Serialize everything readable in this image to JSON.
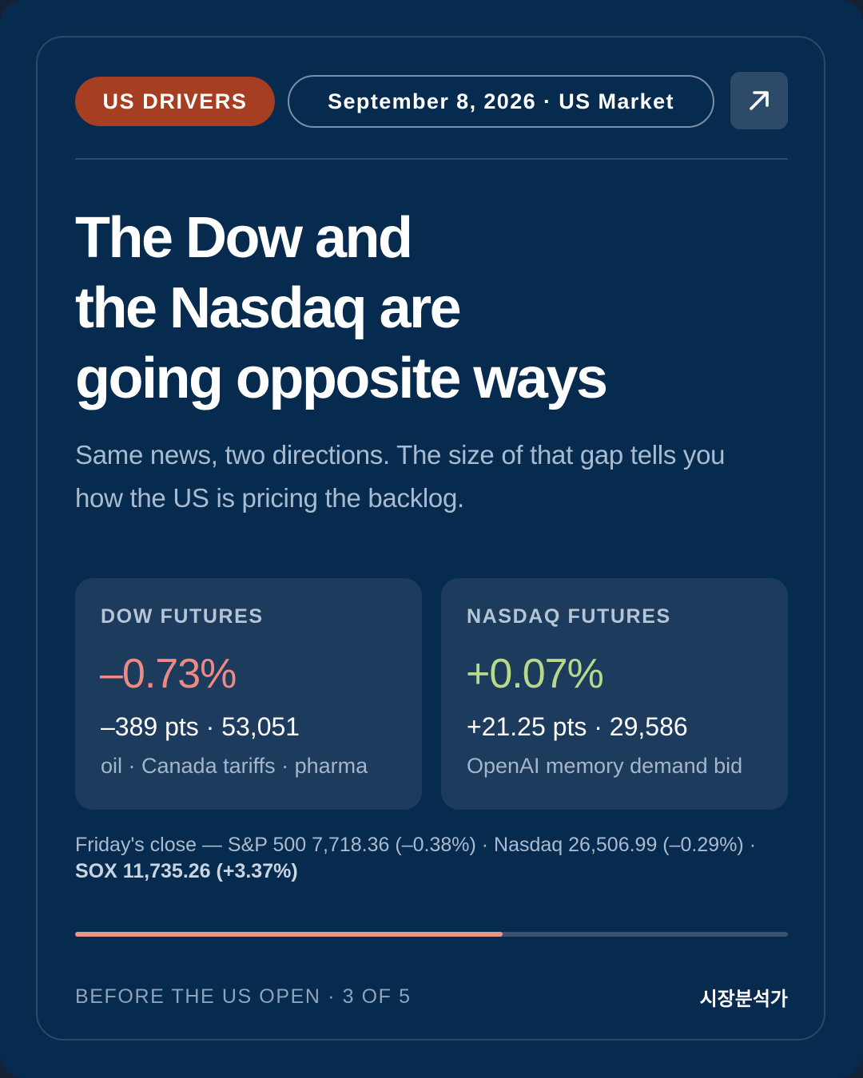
{
  "header": {
    "category_label": "US DRIVERS",
    "date_market_label": "September 8, 2026 · US Market",
    "open_icon": "arrow-up-right-icon"
  },
  "headline": {
    "lines": [
      "The Dow and",
      "the Nasdaq are",
      "going opposite ways"
    ]
  },
  "subtitle": "Same news, two directions. The size of that gap tells you how the US is pricing the backlog.",
  "futures": {
    "dow": {
      "label": "DOW FUTURES",
      "change_pct": "–0.73%",
      "points_level": "–389 pts · 53,051",
      "drivers": "oil · Canada tariffs · pharma"
    },
    "nasdaq": {
      "label": "NASDAQ FUTURES",
      "change_pct": "+0.07%",
      "points_level": "+21.25 pts · 29,586",
      "drivers": "OpenAI memory demand bid"
    }
  },
  "friday_close": {
    "text": "Friday's close — S&P 500 7,718.36 (–0.38%) · Nasdaq 26,506.99 (–0.29%) · ",
    "highlight": "SOX 11,735.26 (+3.37%)"
  },
  "progress": {
    "current": 3,
    "total": 5,
    "fill_fraction": 0.6
  },
  "footer": {
    "series_label": "BEFORE THE US OPEN · 3 OF 5",
    "brand": "시장분석가"
  },
  "colors": {
    "background": "#072a4f",
    "category_pill": "#a63f22",
    "negative": "#ee8a84",
    "positive": "#b7d98b",
    "progress_fill": "#e99782"
  }
}
